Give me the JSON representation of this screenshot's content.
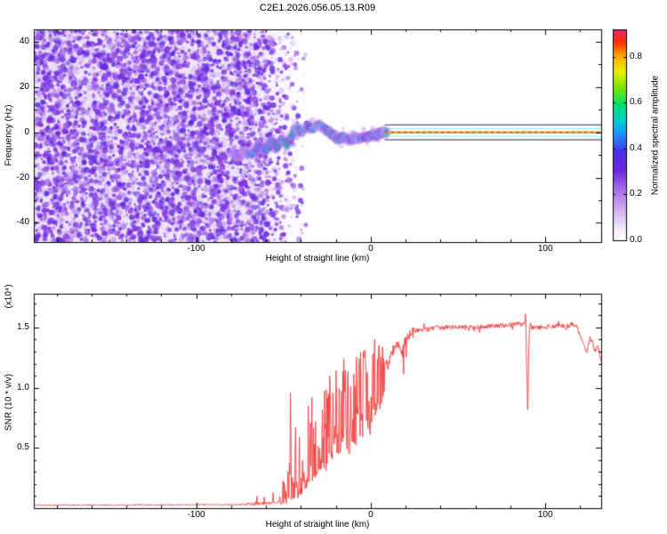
{
  "chart_data": [
    {
      "type": "heatmap",
      "title": "C2E1.2026.056.05.13.R09",
      "xlabel": "Height of straight line (km)",
      "ylabel": "Frequency (Hz)",
      "xlim": [
        -193,
        132
      ],
      "ylim": [
        -48.5,
        45.5
      ],
      "xticks": [
        -100,
        0,
        100
      ],
      "x_minor_step": 20,
      "yticks": [
        -40,
        -20,
        0,
        20,
        40
      ],
      "y_minor_step": 10,
      "colorbar": {
        "label": "Normalized spectral amplitude",
        "ticks": [
          0,
          0.2,
          0.4,
          0.6,
          0.8
        ],
        "max": 0.92
      },
      "colormap_stops": [
        [
          0.0,
          "#ffffff"
        ],
        [
          0.05,
          "#f3ecfb"
        ],
        [
          0.15,
          "#cfa9f0"
        ],
        [
          0.25,
          "#a266e8"
        ],
        [
          0.33,
          "#7225dc"
        ],
        [
          0.42,
          "#4433e8"
        ],
        [
          0.5,
          "#1e90ff"
        ],
        [
          0.57,
          "#00cfd0"
        ],
        [
          0.64,
          "#00e070"
        ],
        [
          0.72,
          "#74e600"
        ],
        [
          0.8,
          "#e8ee00"
        ],
        [
          0.87,
          "#ffb000"
        ],
        [
          0.94,
          "#ff3000"
        ],
        [
          1.0,
          "#df2a64"
        ]
      ],
      "noise_region": {
        "x_full_until": -66,
        "x_fade_end": -36,
        "background": "#ece3f9"
      },
      "signal_trace": {
        "x": [
          -80,
          -76,
          -72,
          -68,
          -64,
          -60,
          -57,
          -54,
          -51,
          -48,
          -45,
          -42,
          -39,
          -36,
          -33,
          -30,
          -27,
          -24,
          -21,
          -18,
          -15,
          -12,
          -9,
          -6,
          -3,
          0,
          3,
          6,
          9
        ],
        "freq_hz": [
          -9,
          -11,
          -8,
          -10,
          -6,
          -8,
          -4,
          -7,
          -3,
          -6,
          -1,
          2,
          0,
          3,
          1,
          4,
          2,
          0,
          -2,
          -3,
          -2,
          -3.5,
          -2.5,
          -3,
          -2,
          -1.5,
          -1,
          -0.5,
          0
        ]
      },
      "locked_line": {
        "x_start": 8,
        "x_end": 132,
        "center_freq_hz": 0,
        "edge_offset_hz": 3.3
      }
    },
    {
      "type": "line",
      "xlabel": "Height of straight line (km)",
      "ylabel": "SNR (10 * v/v)",
      "y_scale_label": "(x10⁴)",
      "line_color": "#f23b3b",
      "xlim": [
        -193,
        132
      ],
      "ylim": [
        0,
        1.78
      ],
      "xticks": [
        -100,
        0,
        100
      ],
      "x_minor_step": 20,
      "yticks": [
        0.5,
        1.0,
        1.5
      ],
      "y_minor_step": 0.1,
      "envelope": [
        [
          -193,
          0.025
        ],
        [
          -120,
          0.027
        ],
        [
          -80,
          0.03
        ],
        [
          -70,
          0.032
        ],
        [
          -60,
          0.04
        ],
        [
          -52,
          0.05
        ],
        [
          -45,
          0.12
        ],
        [
          -40,
          0.2
        ],
        [
          -35,
          0.3
        ],
        [
          -30,
          0.45
        ],
        [
          -25,
          0.5
        ],
        [
          -20,
          0.55
        ],
        [
          -15,
          0.6
        ],
        [
          -10,
          0.65
        ],
        [
          -5,
          0.75
        ],
        [
          -2,
          0.85
        ],
        [
          0,
          0.95
        ],
        [
          2,
          1.05
        ],
        [
          5,
          1.18
        ],
        [
          8,
          1.22
        ],
        [
          10,
          1.17
        ],
        [
          12,
          1.3
        ],
        [
          15,
          1.36
        ],
        [
          18,
          1.27
        ],
        [
          20,
          1.42
        ],
        [
          25,
          1.47
        ],
        [
          30,
          1.48
        ],
        [
          40,
          1.5
        ],
        [
          55,
          1.5
        ],
        [
          70,
          1.51
        ],
        [
          80,
          1.52
        ],
        [
          85,
          1.53
        ],
        [
          88,
          1.52
        ],
        [
          88.8,
          1.63
        ],
        [
          89.4,
          1.1
        ],
        [
          90,
          0.78
        ],
        [
          90.6,
          1.35
        ],
        [
          91.2,
          1.55
        ],
        [
          92,
          1.5
        ],
        [
          100,
          1.5
        ],
        [
          108,
          1.52
        ],
        [
          112,
          1.5
        ],
        [
          115,
          1.53
        ],
        [
          118,
          1.5
        ],
        [
          120,
          1.44
        ],
        [
          122,
          1.34
        ],
        [
          124,
          1.3
        ],
        [
          125.5,
          1.42
        ],
        [
          127,
          1.38
        ],
        [
          128.5,
          1.3
        ],
        [
          130,
          1.36
        ],
        [
          132,
          1.22
        ]
      ],
      "chaos": {
        "x0": -52,
        "x1": 8,
        "low": [
          [
            -52,
            0.03
          ],
          [
            -48,
            0.04
          ],
          [
            -45,
            0.06
          ],
          [
            -42,
            0.08
          ],
          [
            -40,
            0.1
          ],
          [
            -38,
            0.15
          ],
          [
            -35,
            0.2
          ],
          [
            -32,
            0.25
          ],
          [
            -30,
            0.3
          ],
          [
            -28,
            0.33
          ],
          [
            -26,
            0.3
          ],
          [
            -24,
            0.35
          ],
          [
            -22,
            0.4
          ],
          [
            -20,
            0.42
          ],
          [
            -18,
            0.45
          ],
          [
            -16,
            0.42
          ],
          [
            -14,
            0.5
          ],
          [
            -12,
            0.45
          ],
          [
            -10,
            0.55
          ],
          [
            -8,
            0.5
          ],
          [
            -6,
            0.6
          ],
          [
            -4,
            0.55
          ],
          [
            -2,
            0.65
          ],
          [
            0,
            0.6
          ],
          [
            2,
            0.8
          ],
          [
            4,
            0.7
          ],
          [
            6,
            0.85
          ],
          [
            8,
            0.9
          ]
        ],
        "high": [
          [
            -52,
            0.2
          ],
          [
            -48,
            0.7
          ],
          [
            -46,
            1.25
          ],
          [
            -44,
            0.8
          ],
          [
            -42,
            1.3
          ],
          [
            -40,
            1.0
          ],
          [
            -38,
            1.35
          ],
          [
            -36,
            0.9
          ],
          [
            -34,
            1.2
          ],
          [
            -32,
            0.8
          ],
          [
            -30,
            1.25
          ],
          [
            -28,
            1.4
          ],
          [
            -26,
            1.0
          ],
          [
            -24,
            1.3
          ],
          [
            -22,
            1.1
          ],
          [
            -20,
            1.35
          ],
          [
            -18,
            1.2
          ],
          [
            -16,
            1.3
          ],
          [
            -14,
            1.1
          ],
          [
            -12,
            1.35
          ],
          [
            -10,
            1.25
          ],
          [
            -8,
            1.4
          ],
          [
            -6,
            1.3
          ],
          [
            -4,
            1.5
          ],
          [
            -2,
            1.35
          ],
          [
            0,
            1.55
          ],
          [
            2,
            1.5
          ],
          [
            4,
            1.45
          ],
          [
            6,
            1.3
          ],
          [
            8,
            1.5
          ]
        ]
      }
    }
  ]
}
